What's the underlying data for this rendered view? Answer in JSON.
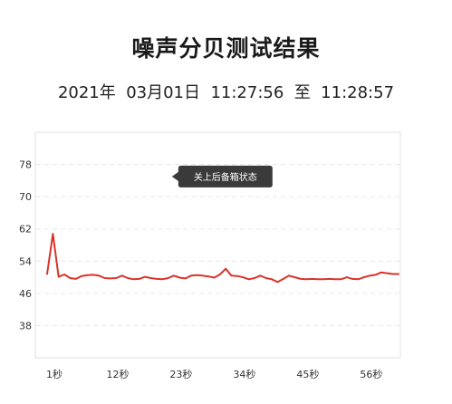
{
  "header": {
    "title": "噪声分贝测试结果",
    "subtitle": "2021年  03月01日  11:27:56  至  11:28:57"
  },
  "chart_data": {
    "type": "line",
    "title": "噪声分贝测试结果",
    "subtitle": "2021年  03月01日  11:27:56  至  11:28:57",
    "xlabel": "",
    "ylabel": "",
    "ylim": [
      30,
      86
    ],
    "y_ticks": [
      38,
      46,
      54,
      62,
      70,
      78
    ],
    "xlim": [
      1,
      62
    ],
    "x_ticks": [
      1,
      12,
      23,
      34,
      45,
      56
    ],
    "x_tick_labels": [
      "1秒",
      "12秒",
      "23秒",
      "34秒",
      "45秒",
      "56秒"
    ],
    "grid": true,
    "line_color": "#d9342b",
    "annotation": {
      "text": "关上后备箱状态",
      "x": 31,
      "y": 75
    },
    "series": [
      {
        "x": [
          1,
          2,
          3,
          4,
          5,
          6,
          7,
          8,
          9,
          10,
          11,
          12,
          13,
          14,
          15,
          16,
          17,
          18,
          19,
          20,
          21,
          22,
          23,
          24,
          25,
          26,
          27,
          28,
          29,
          30,
          31,
          32,
          33,
          34,
          35,
          36,
          37,
          38,
          39,
          40,
          41,
          42,
          43,
          44,
          45,
          46,
          47,
          48,
          49,
          50,
          51,
          52,
          53,
          54,
          55,
          56,
          57,
          58,
          59,
          60,
          61,
          62
        ],
        "values": [
          50.8,
          60.8,
          50.1,
          50.7,
          49.8,
          49.6,
          50.3,
          50.5,
          50.6,
          50.4,
          49.8,
          49.7,
          49.8,
          50.4,
          49.8,
          49.5,
          49.6,
          50.1,
          49.8,
          49.6,
          49.5,
          49.8,
          50.4,
          49.9,
          49.7,
          50.4,
          50.5,
          50.4,
          50.2,
          49.9,
          50.7,
          52.1,
          50.4,
          50.3,
          50.0,
          49.5,
          49.8,
          50.4,
          49.8,
          49.5,
          48.8,
          49.6,
          50.4,
          50.0,
          49.6,
          49.5,
          49.6,
          49.5,
          49.5,
          49.6,
          49.5,
          49.5,
          50.0,
          49.6,
          49.5,
          50.0,
          50.4,
          50.6,
          51.2,
          51.0,
          50.8,
          50.8
        ]
      }
    ]
  }
}
